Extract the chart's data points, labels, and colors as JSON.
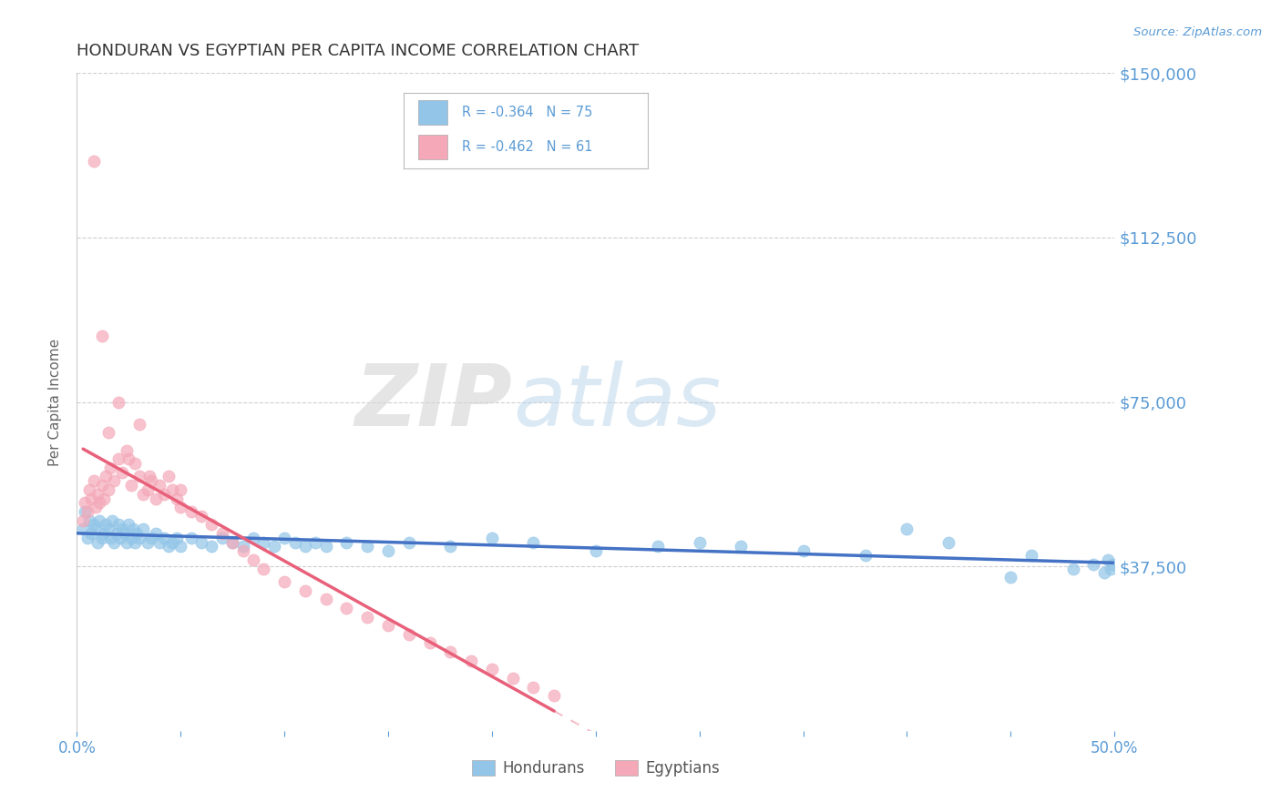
{
  "title": "HONDURAN VS EGYPTIAN PER CAPITA INCOME CORRELATION CHART",
  "source": "Source: ZipAtlas.com",
  "ylabel": "Per Capita Income",
  "xlim": [
    0.0,
    0.5
  ],
  "ylim": [
    0,
    150000
  ],
  "xticks": [
    0.0,
    0.05,
    0.1,
    0.15,
    0.2,
    0.25,
    0.3,
    0.35,
    0.4,
    0.45,
    0.5
  ],
  "xticklabels": [
    "0.0%",
    "",
    "",
    "",
    "",
    "",
    "",
    "",
    "",
    "",
    "50.0%"
  ],
  "ytick_values": [
    0,
    37500,
    75000,
    112500,
    150000
  ],
  "ytick_labels": [
    "",
    "$37,500",
    "$75,000",
    "$112,500",
    "$150,000"
  ],
  "honduran_color": "#92C5E8",
  "egyptian_color": "#F4A8B8",
  "trend_honduran_color": "#4472C4",
  "trend_egyptian_color": "#E8607A",
  "honduran_R": -0.364,
  "honduran_N": 75,
  "egyptian_R": -0.462,
  "egyptian_N": 61,
  "watermark_zip": "ZIP",
  "watermark_atlas": "atlas",
  "background_color": "#FFFFFF",
  "grid_color": "#BBBBBB",
  "axis_color": "#5B9BD5",
  "legend_border_color": "#BBBBBB",
  "honduran_x": [
    0.003,
    0.004,
    0.005,
    0.006,
    0.007,
    0.008,
    0.009,
    0.01,
    0.011,
    0.012,
    0.013,
    0.014,
    0.015,
    0.016,
    0.017,
    0.018,
    0.019,
    0.02,
    0.021,
    0.022,
    0.023,
    0.024,
    0.025,
    0.026,
    0.027,
    0.028,
    0.029,
    0.03,
    0.032,
    0.034,
    0.036,
    0.038,
    0.04,
    0.042,
    0.044,
    0.046,
    0.048,
    0.05,
    0.055,
    0.06,
    0.065,
    0.07,
    0.075,
    0.08,
    0.085,
    0.09,
    0.095,
    0.1,
    0.105,
    0.11,
    0.115,
    0.12,
    0.13,
    0.14,
    0.15,
    0.16,
    0.18,
    0.2,
    0.22,
    0.25,
    0.28,
    0.3,
    0.32,
    0.35,
    0.38,
    0.4,
    0.42,
    0.45,
    0.46,
    0.48,
    0.49,
    0.495,
    0.497,
    0.498,
    0.499
  ],
  "honduran_y": [
    46000,
    50000,
    44000,
    48000,
    45000,
    47000,
    46000,
    43000,
    48000,
    44000,
    45000,
    47000,
    46000,
    44000,
    48000,
    43000,
    45000,
    47000,
    44000,
    46000,
    45000,
    43000,
    47000,
    44000,
    46000,
    43000,
    45000,
    44000,
    46000,
    43000,
    44000,
    45000,
    43000,
    44000,
    42000,
    43000,
    44000,
    42000,
    44000,
    43000,
    42000,
    44000,
    43000,
    42000,
    44000,
    43000,
    42000,
    44000,
    43000,
    42000,
    43000,
    42000,
    43000,
    42000,
    41000,
    43000,
    42000,
    44000,
    43000,
    41000,
    42000,
    43000,
    42000,
    41000,
    40000,
    46000,
    43000,
    35000,
    40000,
    37000,
    38000,
    36000,
    39000,
    37000,
    38000
  ],
  "egyptian_x": [
    0.003,
    0.004,
    0.005,
    0.006,
    0.007,
    0.008,
    0.009,
    0.01,
    0.011,
    0.012,
    0.013,
    0.014,
    0.015,
    0.016,
    0.018,
    0.02,
    0.022,
    0.024,
    0.026,
    0.028,
    0.03,
    0.032,
    0.034,
    0.036,
    0.038,
    0.04,
    0.042,
    0.044,
    0.046,
    0.048,
    0.05,
    0.055,
    0.06,
    0.065,
    0.07,
    0.075,
    0.08,
    0.085,
    0.09,
    0.1,
    0.11,
    0.12,
    0.13,
    0.14,
    0.15,
    0.16,
    0.17,
    0.18,
    0.19,
    0.2,
    0.21,
    0.22,
    0.23,
    0.05,
    0.015,
    0.025,
    0.035,
    0.008,
    0.012,
    0.02,
    0.03
  ],
  "egyptian_y": [
    48000,
    52000,
    50000,
    55000,
    53000,
    57000,
    51000,
    54000,
    52000,
    56000,
    53000,
    58000,
    55000,
    60000,
    57000,
    62000,
    59000,
    64000,
    56000,
    61000,
    58000,
    54000,
    55000,
    57000,
    53000,
    56000,
    54000,
    58000,
    55000,
    53000,
    51000,
    50000,
    49000,
    47000,
    45000,
    43000,
    41000,
    39000,
    37000,
    34000,
    32000,
    30000,
    28000,
    26000,
    24000,
    22000,
    20000,
    18000,
    16000,
    14000,
    12000,
    10000,
    8000,
    55000,
    68000,
    62000,
    58000,
    130000,
    90000,
    75000,
    70000
  ]
}
